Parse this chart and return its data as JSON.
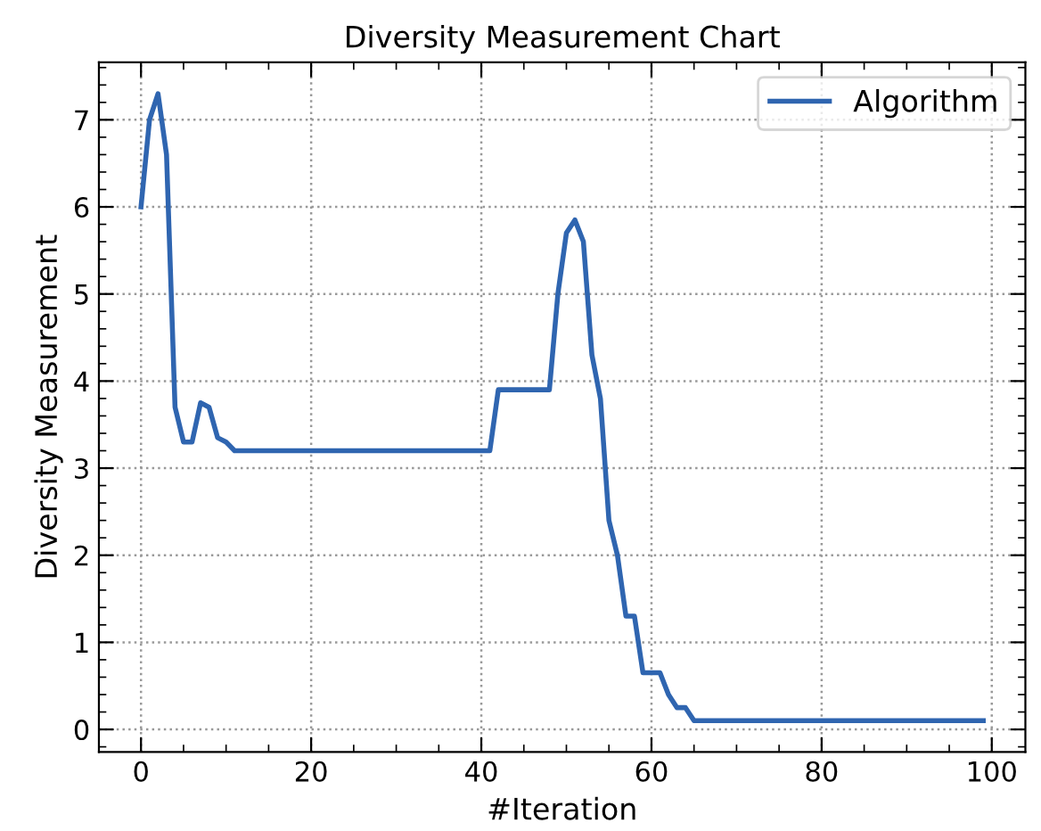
{
  "chart_data": {
    "type": "line",
    "title": "Diversity Measurement Chart",
    "xlabel": "#Iteration",
    "ylabel": "Diversity Measurement",
    "xlim": [
      -4.95,
      103.95
    ],
    "ylim": [
      -0.26,
      7.66
    ],
    "xticks": [
      0,
      20,
      40,
      60,
      80,
      100
    ],
    "yticks": [
      0,
      1,
      2,
      3,
      4,
      5,
      6,
      7
    ],
    "grid": true,
    "legend": "top right",
    "line_style": "solid",
    "marker": "none",
    "series": [
      {
        "name": "Algorithm",
        "color": "#2f65b0",
        "x": [
          0,
          1,
          2,
          3,
          4,
          5,
          6,
          7,
          8,
          9,
          10,
          11,
          41,
          42,
          48,
          49,
          50,
          51,
          52,
          53,
          54,
          55,
          56,
          57,
          58,
          59,
          61,
          62,
          63,
          64,
          65,
          99
        ],
        "values": [
          6.0,
          7.0,
          7.3,
          6.6,
          3.7,
          3.3,
          3.3,
          3.75,
          3.7,
          3.35,
          3.3,
          3.2,
          3.2,
          3.9,
          3.9,
          5.0,
          5.7,
          5.85,
          5.6,
          4.3,
          3.8,
          2.4,
          2.0,
          1.3,
          1.3,
          0.65,
          0.65,
          0.4,
          0.25,
          0.25,
          0.1,
          0.1
        ]
      }
    ]
  }
}
